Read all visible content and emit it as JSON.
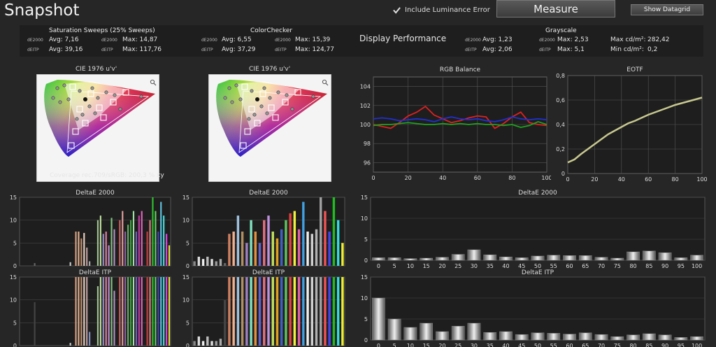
{
  "header": {
    "title": "Snapshot",
    "include_luminance_label": "Include Luminance Error",
    "measure_label": "Measure",
    "datagrid_label": "Show Datagrid"
  },
  "summary": {
    "sat_title": "Saturation Sweeps (25% Sweeps)",
    "cc_title": "ColorChecker",
    "gs_title": "Grayscale",
    "display_performance": "Display Performance",
    "tag_de2000": "dE2000",
    "tag_deitp": "dEITP",
    "sat_r1a": "Avg: 7,16",
    "sat_r1b": "Max: 14,87",
    "sat_r2a": "Avg: 39,16",
    "sat_r2b": "Max: 117,76",
    "cc_r1a": "Avg: 6,55",
    "cc_r1b": "Max: 15,39",
    "cc_r2a": "Avg: 37,29",
    "cc_r2b": "Max: 124,77",
    "gs_r1a": "Avg: 1,23",
    "gs_r1b": "Max: 2,53",
    "gs_r1c": "Max cd/m²:",
    "gs_r1d": "282,42",
    "gs_r2a": "Avg: 2,06",
    "gs_r2b": "Max: 5,1",
    "gs_r2c": "Min cd/m²:",
    "gs_r2d": "0,2"
  },
  "cie": {
    "title_left": "CIE 1976 u'v'",
    "title_right": "CIE 1976 u'v'",
    "coverage": "Coverage rec.709/sRGB:  200,3 % xy",
    "zoom_icon": "magnifier-icon"
  },
  "colors": {
    "bg": "#262626",
    "panel": "#1e1e1e",
    "grid": "#555555",
    "red": "#e02020",
    "green": "#20a020",
    "blue": "#2030d0",
    "eotf": "#c8c890"
  },
  "chart_data": [
    {
      "type": "line",
      "id": "rgb",
      "title": "RGB Balance",
      "x": [
        0,
        5,
        10,
        15,
        20,
        25,
        30,
        35,
        40,
        45,
        50,
        55,
        60,
        65,
        70,
        75,
        80,
        85,
        90,
        95,
        100
      ],
      "xlim": [
        0,
        100
      ],
      "ylim": [
        95,
        105
      ],
      "xticks": [
        "0",
        "20",
        "40",
        "60",
        "80",
        "100"
      ],
      "yticks": [
        "96",
        "98",
        "100",
        "102",
        "104"
      ],
      "series": [
        {
          "color": "red",
          "values": [
            100.0,
            99.8,
            99.6,
            100.2,
            100.9,
            101.3,
            101.9,
            101.0,
            100.6,
            100.2,
            100.4,
            100.7,
            100.9,
            100.8,
            99.6,
            100.1,
            100.8,
            101.3,
            100.2,
            100.0,
            99.9
          ]
        },
        {
          "color": "green",
          "values": [
            99.9,
            100.0,
            100.0,
            100.1,
            100.2,
            100.1,
            100.0,
            100.0,
            100.1,
            100.0,
            100.1,
            100.0,
            100.1,
            100.0,
            100.0,
            99.9,
            100.0,
            99.7,
            99.9,
            100.3,
            100.0
          ]
        },
        {
          "color": "blue",
          "values": [
            100.6,
            100.7,
            100.6,
            100.4,
            100.5,
            100.6,
            100.5,
            100.3,
            100.6,
            100.8,
            100.6,
            100.5,
            100.6,
            100.4,
            100.3,
            100.5,
            100.8,
            100.6,
            100.5,
            100.6,
            100.5
          ]
        }
      ]
    },
    {
      "type": "line",
      "id": "eotf",
      "title": "EOTF",
      "x": [
        0,
        5,
        10,
        15,
        20,
        25,
        30,
        35,
        40,
        45,
        50,
        55,
        60,
        65,
        70,
        75,
        80,
        85,
        90,
        95,
        100
      ],
      "xlim": [
        0,
        100
      ],
      "ylim": [
        0,
        0.8
      ],
      "xticks": [
        "0",
        "20",
        "40",
        "60",
        "80",
        "100"
      ],
      "yticks": [
        "0",
        "0,2",
        "0,4",
        "0,6",
        "0,8"
      ],
      "series": [
        {
          "color": "eotf",
          "values": [
            0.09,
            0.115,
            0.16,
            0.2,
            0.24,
            0.28,
            0.32,
            0.35,
            0.38,
            0.41,
            0.43,
            0.455,
            0.48,
            0.5,
            0.52,
            0.54,
            0.56,
            0.575,
            0.59,
            0.605,
            0.62
          ]
        }
      ]
    },
    {
      "type": "bar",
      "id": "gs2000",
      "title": "DeltaE 2000",
      "categories": [
        "0",
        "5",
        "10",
        "15",
        "20",
        "25",
        "30",
        "35",
        "40",
        "45",
        "50",
        "55",
        "60",
        "65",
        "70",
        "75",
        "80",
        "85",
        "90",
        "95",
        "100"
      ],
      "values": [
        0.6,
        0.6,
        0.4,
        0.5,
        0.7,
        1.4,
        2.5,
        1.3,
        0.8,
        0.6,
        1.0,
        1.2,
        1.1,
        1.1,
        0.7,
        0.5,
        2.0,
        2.2,
        1.8,
        0.6,
        1.2
      ],
      "ylim": [
        0,
        15
      ],
      "yticks": [
        "0",
        "5",
        "10",
        "15"
      ]
    },
    {
      "type": "bar",
      "id": "gsitp",
      "title": "DeltaE ITP",
      "categories": [
        "0",
        "5",
        "10",
        "15",
        "20",
        "25",
        "30",
        "35",
        "40",
        "45",
        "50",
        "55",
        "60",
        "65",
        "70",
        "75",
        "80",
        "85",
        "90",
        "95",
        "100"
      ],
      "values": [
        10.0,
        5.0,
        3.0,
        4.0,
        2.0,
        3.3,
        4.0,
        1.8,
        2.0,
        1.3,
        1.7,
        1.6,
        1.4,
        1.7,
        1.3,
        0.8,
        1.2,
        1.5,
        1.2,
        0.6,
        0.8
      ],
      "ylim": [
        0,
        15
      ],
      "yticks": [
        "0",
        "5",
        "10",
        "15"
      ]
    },
    {
      "type": "bar",
      "id": "sat2000",
      "title": "DeltaE 2000",
      "values": [
        0,
        0,
        0,
        0,
        0,
        0.6,
        0,
        0,
        0,
        0,
        0,
        0,
        0,
        0,
        0,
        0,
        0,
        0,
        0.8,
        0,
        7.5,
        7.5,
        6,
        7.2,
        4,
        1,
        0,
        0,
        10,
        11,
        7,
        7.5,
        4.5,
        10.5,
        8,
        0,
        10,
        12,
        7.5,
        9,
        10,
        12,
        7.5,
        11,
        12,
        0,
        7.5,
        10,
        15,
        12,
        7.5,
        14,
        11,
        7,
        4.5
      ],
      "colors": [
        "#888",
        "#888",
        "#888",
        "#888",
        "#888",
        "#666",
        "#888",
        "#888",
        "#888",
        "#888",
        "#888",
        "#888",
        "#888",
        "#888",
        "#888",
        "#888",
        "#888",
        "#888",
        "#ccc",
        "#888",
        "#d8a080",
        "#e0b090",
        "#c09070",
        "#e8d0c0",
        "#c0a0a0",
        "#aaa",
        "#888",
        "#888",
        "#a0c090",
        "#c0e0a0",
        "#9090c0",
        "#e080a0",
        "#c090d0",
        "#80c080",
        "#b090c0",
        "#888",
        "#d06060",
        "#e0a0a0",
        "#9060a0",
        "#60b060",
        "#40a040",
        "#a0e0a0",
        "#7060c0",
        "#c040a0",
        "#e060c0",
        "#888",
        "#c04040",
        "#e08080",
        "#30c030",
        "#60d060",
        "#4040c0",
        "#60c0e0",
        "#40e0e0",
        "#e040e0",
        "#e0e040"
      ],
      "ylim": [
        0,
        15
      ],
      "yticks": [
        "0",
        "5",
        "10",
        "15"
      ]
    },
    {
      "type": "bar",
      "id": "satitp",
      "title": "DeltaE ITP",
      "values": [
        0,
        0,
        0,
        0,
        0,
        9.5,
        0,
        0,
        0,
        0,
        0,
        0,
        0,
        0,
        0,
        0,
        0,
        0,
        0.6,
        0,
        15,
        15,
        15,
        15,
        15,
        3,
        0,
        0,
        13,
        15,
        15,
        15,
        15,
        15,
        12,
        0,
        15,
        15,
        15,
        15,
        15,
        15,
        15,
        15,
        15,
        0,
        15,
        15,
        15,
        15,
        15,
        15,
        15,
        15,
        15
      ],
      "colors": [
        "#888",
        "#888",
        "#888",
        "#888",
        "#888",
        "#444",
        "#888",
        "#888",
        "#888",
        "#888",
        "#888",
        "#888",
        "#888",
        "#888",
        "#888",
        "#888",
        "#888",
        "#888",
        "#ccc",
        "#888",
        "#d8a080",
        "#e0b090",
        "#c09070",
        "#e8d0c0",
        "#c0a0a0",
        "#8090c0",
        "#888",
        "#888",
        "#a0c090",
        "#c0e0a0",
        "#9090c0",
        "#e080a0",
        "#c090d0",
        "#80c080",
        "#b090c0",
        "#888",
        "#d06060",
        "#e0a0a0",
        "#9060a0",
        "#60b060",
        "#40a040",
        "#a0e0a0",
        "#7060c0",
        "#c040a0",
        "#e060c0",
        "#888",
        "#c04040",
        "#e08080",
        "#30c030",
        "#60d060",
        "#4040c0",
        "#60c0e0",
        "#40e0e0",
        "#e040e0",
        "#e0e040"
      ],
      "ylim": [
        0,
        15
      ],
      "yticks": [
        "0",
        "5",
        "10",
        "15"
      ]
    },
    {
      "type": "bar",
      "id": "cc2000",
      "title": "DeltaE 2000",
      "values": [
        1,
        2,
        1.5,
        2,
        1.5,
        1,
        1.5,
        0.6,
        7,
        7.5,
        11,
        7.5,
        5,
        10,
        7.5,
        5,
        10,
        11,
        7.5,
        6,
        8,
        10,
        11.5,
        12,
        8,
        14,
        7.5,
        7,
        8,
        15,
        12,
        7.5,
        15,
        10,
        5
      ],
      "colors": [
        "#888",
        "#ddd",
        "#eee",
        "#bbb",
        "#ddd",
        "#999",
        "#aaa",
        "#666",
        "#d08060",
        "#f0b090",
        "#a0c0e0",
        "#b09060",
        "#a080c0",
        "#80e0c0",
        "#e09040",
        "#6060d0",
        "#e07080",
        "#c090e0",
        "#c0e060",
        "#e0a020",
        "#4060c0",
        "#60c060",
        "#e04040",
        "#f0f040",
        "#e060a0",
        "#40a0e0",
        "#f0f0f0",
        "#d0d0d0",
        "#b0b0b0",
        "#a0a0a0",
        "#ee5555",
        "#4444ee",
        "#22bb22",
        "#33dddd",
        "#eeee33"
      ],
      "ylim": [
        0,
        15
      ],
      "yticks": [
        "0",
        "5",
        "10",
        "15"
      ]
    },
    {
      "type": "bar",
      "id": "ccitp",
      "title": "DeltaE ITP",
      "values": [
        1,
        2,
        1,
        2,
        1,
        1,
        1.5,
        10,
        15,
        15,
        15,
        15,
        15,
        15,
        15,
        15,
        15,
        15,
        15,
        15,
        15,
        15,
        15,
        15,
        15,
        15,
        15,
        15,
        15,
        15,
        15,
        15,
        15,
        15,
        15
      ],
      "colors": [
        "#888",
        "#ddd",
        "#eee",
        "#bbb",
        "#ddd",
        "#999",
        "#aaa",
        "#444",
        "#d08060",
        "#f0b090",
        "#a0c0e0",
        "#b09060",
        "#a080c0",
        "#80e0c0",
        "#e09040",
        "#6060d0",
        "#e07080",
        "#c090e0",
        "#c0e060",
        "#e0a020",
        "#4060c0",
        "#60c060",
        "#e04040",
        "#f0f040",
        "#e060a0",
        "#40a0e0",
        "#f0f0f0",
        "#d0d0d0",
        "#b0b0b0",
        "#a0a0a0",
        "#ee5555",
        "#4444ee",
        "#22bb22",
        "#33dddd",
        "#eeee33"
      ],
      "ylim": [
        0,
        15
      ],
      "yticks": [
        "0",
        "5",
        "10",
        "15"
      ]
    }
  ]
}
